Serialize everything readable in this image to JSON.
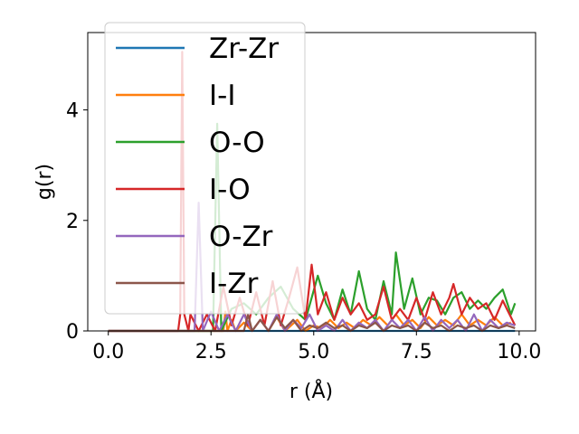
{
  "chart_data": {
    "type": "line",
    "title": "",
    "xlabel": "r (Å)",
    "ylabel": "g(r)",
    "xlim": [
      -0.5,
      10.4
    ],
    "ylim": [
      0,
      5.4
    ],
    "xticks": [
      0.0,
      2.5,
      5.0,
      7.5,
      10.0
    ],
    "xtick_labels": [
      "0.0",
      "2.5",
      "5.0",
      "7.5",
      "10.0"
    ],
    "yticks": [
      0,
      2,
      4
    ],
    "ytick_labels": [
      "0",
      "2",
      "4"
    ],
    "grid": false,
    "legend_position": "upper-left",
    "series": [
      {
        "name": "Zr-Zr",
        "color": "#1f77b4",
        "x": [
          0.0,
          9.9
        ],
        "y": [
          0.0,
          0.0
        ]
      },
      {
        "name": "I-I",
        "color": "#ff7f0e",
        "x": [
          0.0,
          2.8,
          2.85,
          2.9,
          3.0,
          3.1,
          3.3,
          3.5,
          3.7,
          3.9,
          4.1,
          4.3,
          4.6,
          4.8,
          5.0,
          5.2,
          5.4,
          5.6,
          5.8,
          6.0,
          6.2,
          6.4,
          6.6,
          6.8,
          7.0,
          7.2,
          7.4,
          7.6,
          7.8,
          8.0,
          8.2,
          8.4,
          8.6,
          8.8,
          9.0,
          9.2,
          9.4,
          9.6,
          9.8
        ],
        "y": [
          0.0,
          0.0,
          0.35,
          0.0,
          0.2,
          0.0,
          0.15,
          0.0,
          0.2,
          0.0,
          0.25,
          0.0,
          0.2,
          0.0,
          0.1,
          0.05,
          0.2,
          0.05,
          0.15,
          0.05,
          0.2,
          0.1,
          0.25,
          0.1,
          0.3,
          0.1,
          0.2,
          0.05,
          0.25,
          0.1,
          0.2,
          0.1,
          0.3,
          0.1,
          0.2,
          0.1,
          0.25,
          0.1,
          0.15
        ]
      },
      {
        "name": "O-O",
        "color": "#2ca02c",
        "x": [
          0.0,
          2.55,
          2.65,
          2.75,
          3.0,
          3.3,
          3.6,
          3.9,
          4.2,
          4.5,
          4.8,
          5.1,
          5.3,
          5.5,
          5.7,
          5.9,
          6.1,
          6.3,
          6.5,
          6.7,
          6.9,
          7.0,
          7.2,
          7.4,
          7.6,
          7.8,
          8.0,
          8.2,
          8.4,
          8.6,
          8.8,
          9.0,
          9.2,
          9.4,
          9.6,
          9.8,
          9.9
        ],
        "y": [
          0.0,
          0.0,
          3.75,
          0.0,
          0.4,
          0.5,
          0.3,
          0.6,
          0.8,
          0.4,
          0.2,
          1.0,
          0.5,
          0.2,
          0.75,
          0.3,
          1.08,
          0.4,
          0.2,
          0.9,
          0.3,
          1.42,
          0.4,
          0.95,
          0.3,
          0.6,
          0.55,
          0.3,
          0.6,
          0.7,
          0.4,
          0.55,
          0.4,
          0.6,
          0.75,
          0.3,
          0.5
        ]
      },
      {
        "name": "I-O",
        "color": "#d62728",
        "x": [
          0.0,
          1.7,
          1.75,
          1.8,
          1.85,
          1.95,
          2.0,
          2.2,
          2.4,
          2.6,
          2.8,
          3.0,
          3.2,
          3.4,
          3.6,
          3.8,
          4.0,
          4.2,
          4.4,
          4.6,
          4.8,
          4.95,
          5.1,
          5.3,
          5.5,
          5.7,
          5.9,
          6.1,
          6.3,
          6.5,
          6.7,
          6.9,
          7.1,
          7.3,
          7.5,
          7.7,
          7.9,
          8.1,
          8.3,
          8.4,
          8.6,
          8.8,
          9.0,
          9.2,
          9.4,
          9.6,
          9.7,
          9.9
        ],
        "y": [
          0.0,
          0.0,
          0.3,
          5.05,
          0.3,
          0.0,
          0.3,
          0.0,
          0.3,
          0.0,
          0.8,
          0.1,
          0.6,
          0.1,
          0.7,
          0.1,
          0.9,
          0.1,
          0.6,
          1.15,
          0.2,
          1.2,
          0.3,
          0.7,
          0.2,
          0.6,
          0.3,
          0.5,
          0.2,
          0.3,
          0.8,
          0.2,
          0.4,
          0.2,
          0.6,
          0.2,
          0.7,
          0.3,
          0.6,
          0.85,
          0.3,
          0.6,
          0.4,
          0.5,
          0.2,
          0.55,
          0.4,
          0.1
        ]
      },
      {
        "name": "O-Zr",
        "color": "#9467bd",
        "x": [
          0.0,
          2.1,
          2.2,
          2.3,
          2.5,
          2.7,
          2.9,
          3.1,
          3.3,
          3.5,
          3.7,
          3.9,
          4.1,
          4.3,
          4.5,
          4.7,
          4.9,
          5.1,
          5.3,
          5.5,
          5.7,
          5.9,
          6.1,
          6.3,
          6.5,
          6.7,
          6.9,
          7.1,
          7.3,
          7.5,
          7.7,
          7.9,
          8.1,
          8.3,
          8.5,
          8.7,
          8.9,
          9.1,
          9.3,
          9.5,
          9.7,
          9.9
        ],
        "y": [
          0.0,
          0.0,
          2.32,
          0.0,
          0.35,
          0.0,
          0.3,
          0.0,
          0.3,
          0.0,
          0.2,
          0.0,
          0.3,
          0.0,
          0.2,
          0.05,
          0.3,
          0.0,
          0.1,
          0.0,
          0.2,
          0.0,
          0.15,
          0.05,
          0.2,
          0.0,
          0.2,
          0.05,
          0.2,
          0.0,
          0.25,
          0.0,
          0.2,
          0.05,
          0.2,
          0.0,
          0.3,
          0.0,
          0.2,
          0.05,
          0.15,
          0.1
        ]
      },
      {
        "name": "I-Zr",
        "color": "#8c564b",
        "x": [
          0.0,
          3.3,
          3.4,
          3.5,
          3.7,
          3.9,
          4.1,
          4.3,
          4.5,
          4.7,
          4.9,
          5.1,
          5.3,
          5.5,
          5.7,
          5.9,
          6.1,
          6.3,
          6.5,
          6.7,
          6.9,
          7.1,
          7.3,
          7.5,
          7.7,
          7.9,
          8.1,
          8.3,
          8.5,
          8.7,
          8.9,
          9.1,
          9.3,
          9.5,
          9.7,
          9.9
        ],
        "y": [
          0.0,
          0.0,
          0.3,
          0.0,
          0.2,
          0.0,
          0.25,
          0.05,
          0.2,
          0.0,
          0.1,
          0.05,
          0.15,
          0.05,
          0.1,
          0.0,
          0.1,
          0.05,
          0.15,
          0.0,
          0.1,
          0.05,
          0.1,
          0.0,
          0.15,
          0.05,
          0.1,
          0.0,
          0.1,
          0.05,
          0.1,
          0.0,
          0.1,
          0.05,
          0.1,
          0.05
        ]
      }
    ]
  }
}
